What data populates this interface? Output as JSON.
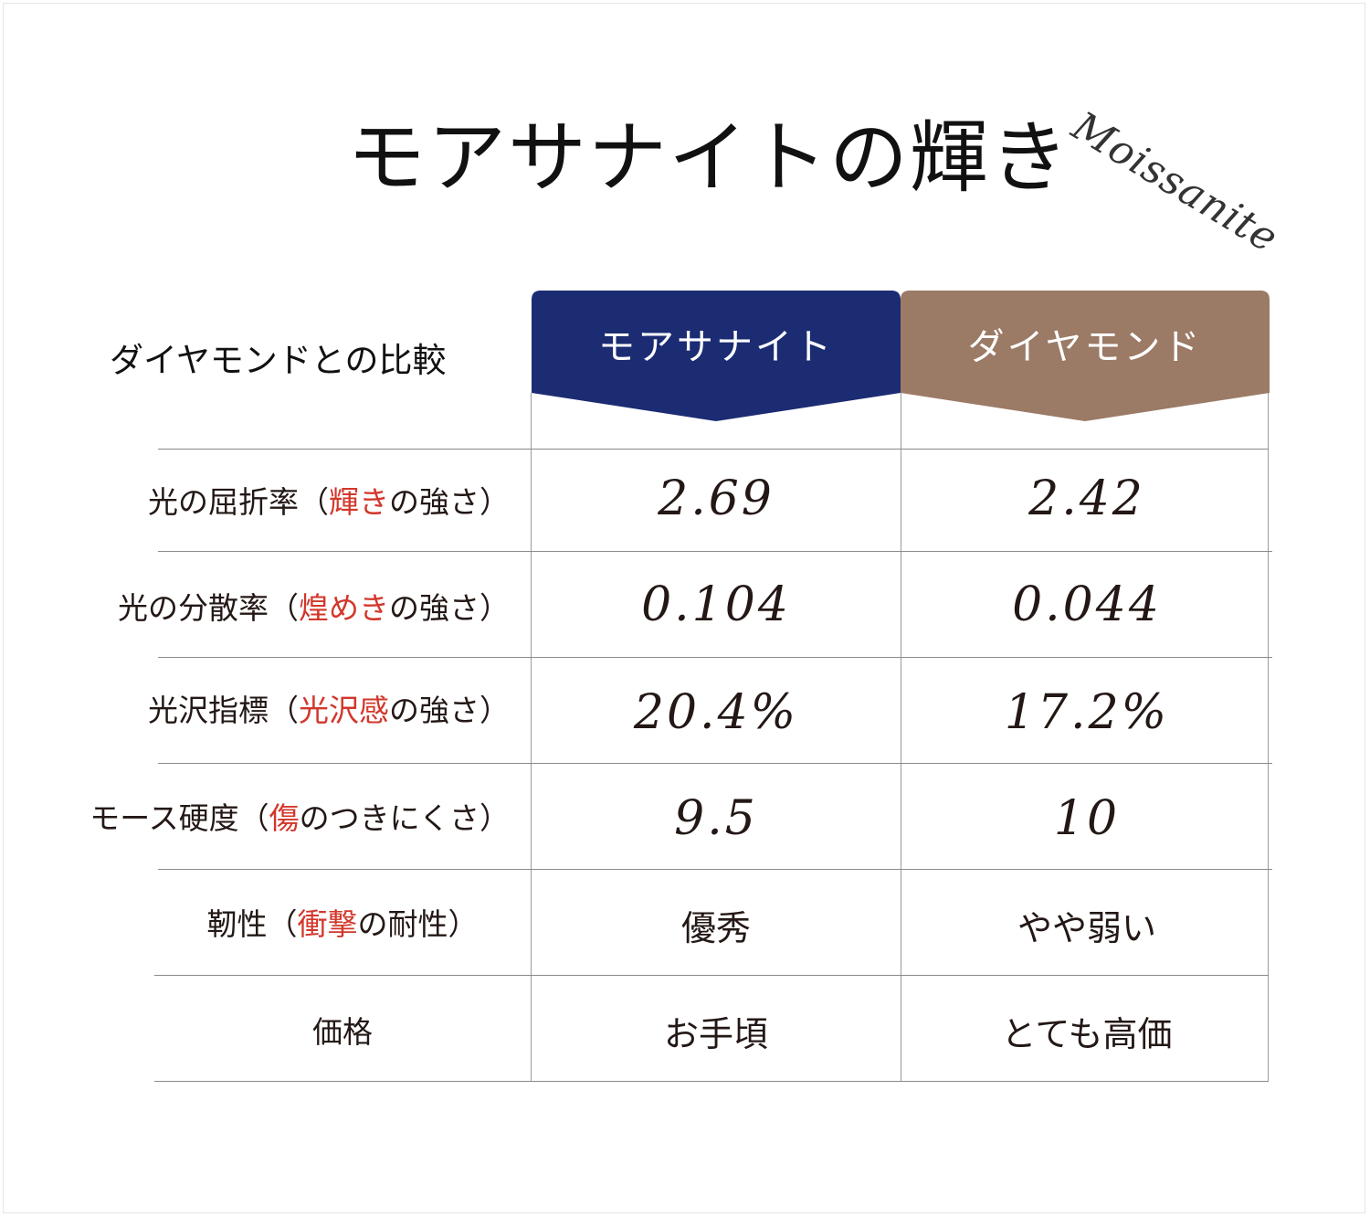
{
  "title": "モアサナイトの輝き",
  "script_text": "Moissanite",
  "corner_label": "ダイヤモンドとの比較",
  "columns": {
    "moissanite": {
      "label": "モアサナイト",
      "color": "#1b2c73"
    },
    "diamond": {
      "label": "ダイヤモンド",
      "color": "#9b7a66"
    }
  },
  "highlight_color": "#d2372b",
  "rows": [
    {
      "pre": "光の屈折率（",
      "hl": "輝き",
      "post": "の強さ）",
      "moissanite": "2.69",
      "diamond": "2.42"
    },
    {
      "pre": "光の分散率（",
      "hl": "煌めき",
      "post": "の強さ）",
      "moissanite": "0.104",
      "diamond": "0.044"
    },
    {
      "pre": "光沢指標（",
      "hl": "光沢感",
      "post": "の強さ）",
      "moissanite": "20.4%",
      "diamond": "17.2%"
    },
    {
      "pre": "モース硬度（",
      "hl": "傷",
      "post": "のつきにくさ）",
      "moissanite": "9.5",
      "diamond": "10"
    },
    {
      "pre": "靭性（",
      "hl": "衝撃",
      "post": "の耐性）",
      "moissanite": "優秀",
      "diamond": "やや弱い"
    },
    {
      "pre": "価格",
      "hl": "",
      "post": "",
      "moissanite": "お手頃",
      "diamond": "とても高価"
    }
  ]
}
